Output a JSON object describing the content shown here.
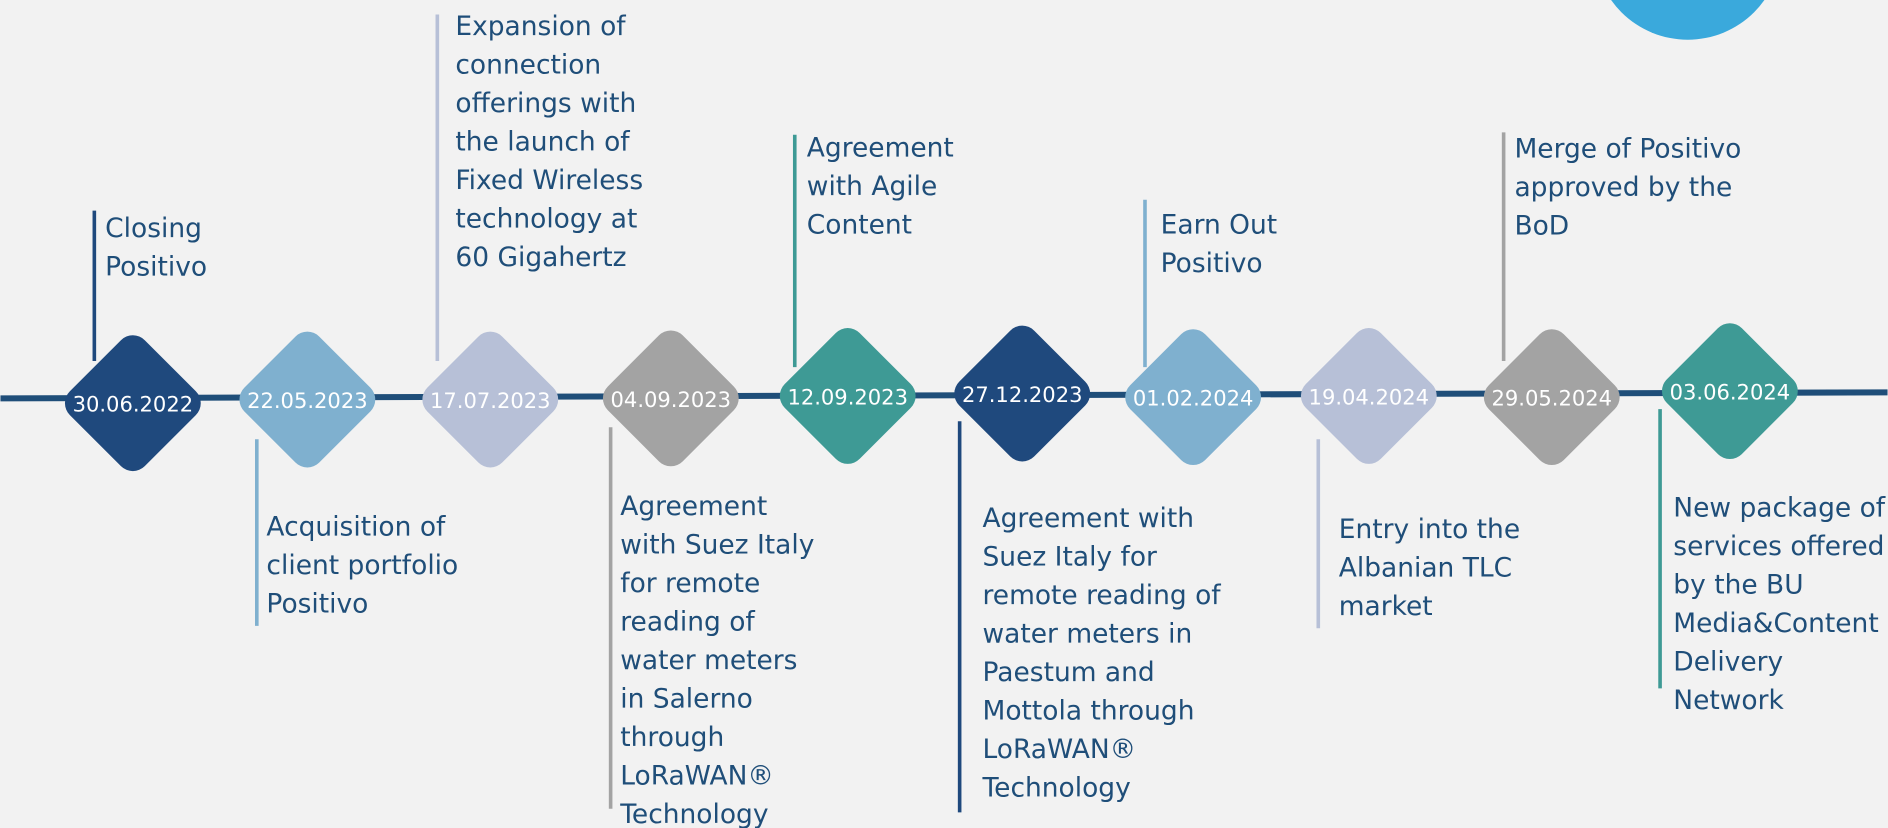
{
  "events": [
    {
      "date": "30.06.2022",
      "lines": [
        "Closing",
        "Positivo"
      ]
    },
    {
      "date": "22.05.2023",
      "lines": [
        "Acquisition of",
        "client portfolio",
        "Positivo"
      ]
    },
    {
      "date": "17.07.2023",
      "lines": [
        "Expansion of",
        "connection",
        "offerings with",
        "the launch of",
        "Fixed Wireless",
        "technology at",
        "60 Gigahertz"
      ]
    },
    {
      "date": "04.09.2023",
      "lines": [
        "Agreement",
        "with Suez Italy",
        "for remote",
        "reading of",
        "water meters",
        "in Salerno",
        "through",
        "LoRaWAN®",
        "Technology"
      ]
    },
    {
      "date": "12.09.2023",
      "lines": [
        "Agreement",
        "with Agile",
        "Content"
      ]
    },
    {
      "date": "27.12.2023",
      "lines": [
        "Agreement with",
        "Suez Italy for",
        "remote reading of",
        "water meters in",
        "Paestum and",
        "Mottola through",
        "LoRaWAN®",
        "Technology"
      ]
    },
    {
      "date": "01.02.2024",
      "lines": [
        "Earn Out",
        "Positivo"
      ]
    },
    {
      "date": "19.04.2024",
      "lines": [
        "Entry into the",
        "Albanian TLC",
        "market"
      ]
    },
    {
      "date": "29.05.2024",
      "lines": [
        "Merge of Positivo",
        "approved by the",
        "BoD"
      ]
    },
    {
      "date": "03.06.2024",
      "lines": [
        "New package of",
        "services offered",
        "by the BU",
        "Media&Content",
        "Delivery",
        "Network"
      ]
    }
  ]
}
